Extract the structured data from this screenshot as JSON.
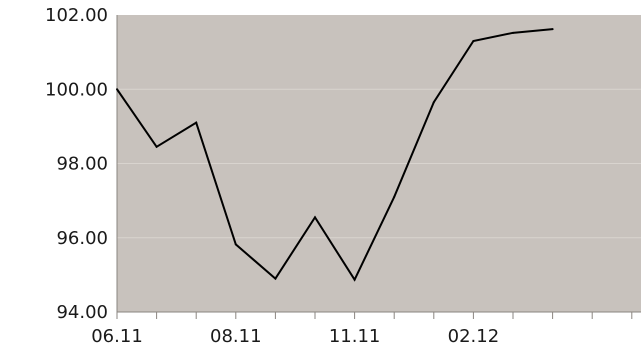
{
  "colors": {
    "plot_background": "#c8c2bd",
    "page_background": "#ffffff",
    "line": "#000000",
    "grid": "#d9d4cf",
    "axis": "#8a8580",
    "text": "#1a1a1a"
  },
  "chart_data": {
    "type": "line",
    "title": "",
    "xlabel": "",
    "ylabel": "",
    "grid": true,
    "legend": "none",
    "ylim": [
      94.0,
      102.0
    ],
    "y_ticks": [
      "94.00",
      "96.00",
      "98.00",
      "100.00",
      "102.00"
    ],
    "x_tick_labels": [
      "06.11",
      "",
      "",
      "08.11",
      "",
      "",
      "11.11",
      "",
      "",
      "02.12",
      "",
      "",
      "",
      ""
    ],
    "points": [
      {
        "x_index": 0,
        "y": 100.0
      },
      {
        "x_index": 1,
        "y": 98.45
      },
      {
        "x_index": 2,
        "y": 99.1
      },
      {
        "x_index": 3,
        "y": 95.82
      },
      {
        "x_index": 4,
        "y": 94.9
      },
      {
        "x_index": 5,
        "y": 96.55
      },
      {
        "x_index": 6,
        "y": 94.87
      },
      {
        "x_index": 7,
        "y": 97.1
      },
      {
        "x_index": 8,
        "y": 99.65
      },
      {
        "x_index": 9,
        "y": 101.3
      },
      {
        "x_index": 10,
        "y": 101.52
      },
      {
        "x_index": 11,
        "y": 101.62
      }
    ]
  }
}
